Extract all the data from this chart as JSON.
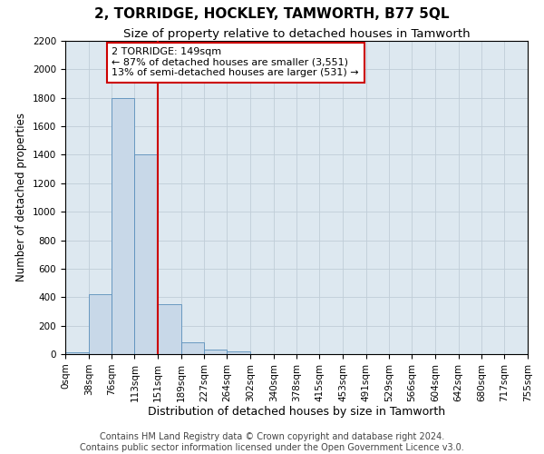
{
  "title": "2, TORRIDGE, HOCKLEY, TAMWORTH, B77 5QL",
  "subtitle": "Size of property relative to detached houses in Tamworth",
  "xlabel": "Distribution of detached houses by size in Tamworth",
  "ylabel": "Number of detached properties",
  "bin_edges": [
    0,
    38,
    76,
    113,
    151,
    189,
    227,
    264,
    302,
    340,
    378,
    415,
    453,
    491,
    529,
    566,
    604,
    642,
    680,
    717,
    755
  ],
  "bar_heights": [
    15,
    420,
    1800,
    1400,
    350,
    80,
    30,
    20,
    0,
    0,
    0,
    0,
    0,
    0,
    0,
    0,
    0,
    0,
    0,
    0
  ],
  "bar_color": "#c8d8e8",
  "bar_edge_color": "#5a8fbb",
  "grid_color": "#c0cdd8",
  "background_color": "#dde8f0",
  "fig_background_color": "#ffffff",
  "property_line_x": 151,
  "property_line_color": "#cc0000",
  "annotation_text": "2 TORRIDGE: 149sqm\n← 87% of detached houses are smaller (3,551)\n13% of semi-detached houses are larger (531) →",
  "annotation_box_color": "#ffffff",
  "annotation_box_edge_color": "#cc0000",
  "ylim": [
    0,
    2200
  ],
  "yticks": [
    0,
    200,
    400,
    600,
    800,
    1000,
    1200,
    1400,
    1600,
    1800,
    2000,
    2200
  ],
  "xtick_labels": [
    "0sqm",
    "38sqm",
    "76sqm",
    "113sqm",
    "151sqm",
    "189sqm",
    "227sqm",
    "264sqm",
    "302sqm",
    "340sqm",
    "378sqm",
    "415sqm",
    "453sqm",
    "491sqm",
    "529sqm",
    "566sqm",
    "604sqm",
    "642sqm",
    "680sqm",
    "717sqm",
    "755sqm"
  ],
  "footer_text": "Contains HM Land Registry data © Crown copyright and database right 2024.\nContains public sector information licensed under the Open Government Licence v3.0.",
  "title_fontsize": 11,
  "subtitle_fontsize": 9.5,
  "xlabel_fontsize": 9,
  "ylabel_fontsize": 8.5,
  "tick_fontsize": 7.5,
  "annotation_fontsize": 8,
  "footer_fontsize": 7
}
